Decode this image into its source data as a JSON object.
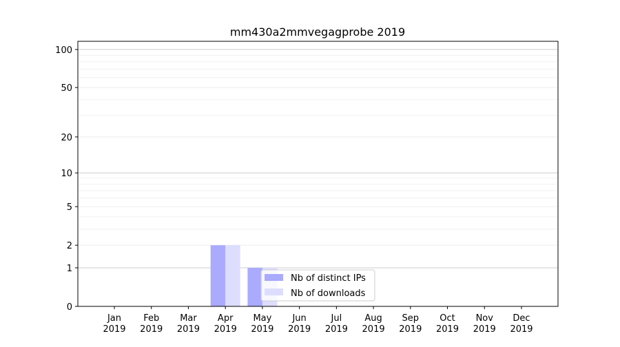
{
  "chart_data": {
    "type": "bar",
    "title": "mm430a2mmvegagprobe 2019",
    "xlabel": "",
    "ylabel": "",
    "yscale": "log(y+1)",
    "ylim": [
      0,
      116
    ],
    "yticks": [
      0,
      1,
      2,
      5,
      10,
      20,
      50,
      100
    ],
    "grid": true,
    "categories": [
      "Jan\n2019",
      "Feb\n2019",
      "Mar\n2019",
      "Apr\n2019",
      "May\n2019",
      "Jun\n2019",
      "Jul\n2019",
      "Aug\n2019",
      "Sep\n2019",
      "Oct\n2019",
      "Nov\n2019",
      "Dec\n2019"
    ],
    "series": [
      {
        "name": "Nb of distinct IPs",
        "color": "#aaaaff",
        "values": [
          0,
          0,
          0,
          2,
          1,
          0,
          0,
          0,
          0,
          0,
          0,
          0
        ]
      },
      {
        "name": "Nb of downloads",
        "color": "#ddddff",
        "values": [
          0,
          0,
          0,
          2,
          1,
          0,
          0,
          0,
          0,
          0,
          0,
          0
        ]
      }
    ],
    "legend": "lower-center"
  }
}
